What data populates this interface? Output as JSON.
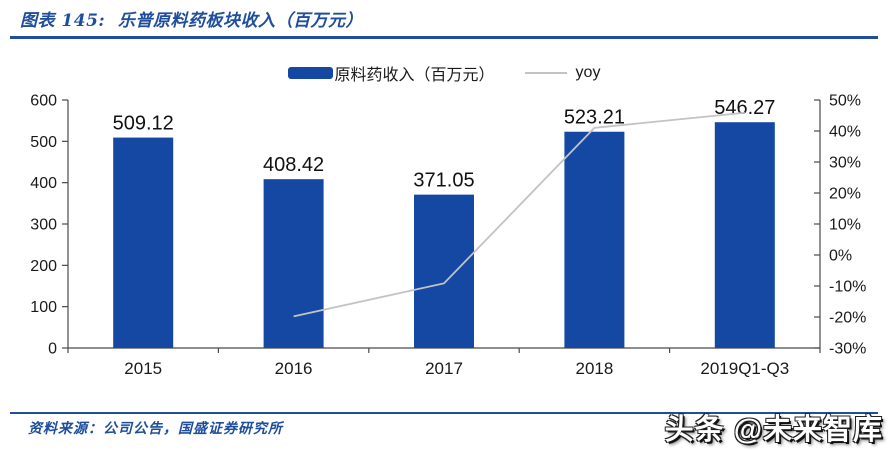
{
  "colors": {
    "accent_blue": "#1F4E9C",
    "bar_blue": "#1548A3",
    "yoy_line_gray": "#C3C3C3",
    "axis_gray": "#4a4a4a",
    "label_dark": "#111111"
  },
  "header": {
    "title": "图表 145:  乐普原料药板块收入（百万元）"
  },
  "legend": {
    "bar_label": "原料药收入（百万元）",
    "line_label": "yoy"
  },
  "chart_data": {
    "type": "bar",
    "title": "乐普原料药板块收入（百万元）",
    "categories": [
      "2015",
      "2016",
      "2017",
      "2018",
      "2019Q1-Q3"
    ],
    "series": [
      {
        "name": "原料药收入（百万元）",
        "type": "bar",
        "axis": "left",
        "values": [
          509.12,
          408.42,
          371.05,
          523.21,
          546.27
        ]
      },
      {
        "name": "yoy",
        "type": "line",
        "axis": "right",
        "values": [
          null,
          -19.78,
          -9.15,
          41.01,
          45.9
        ]
      }
    ],
    "bar_labels": [
      "509.12",
      "408.42",
      "371.05",
      "523.21",
      "546.27"
    ],
    "left_axis": {
      "min": 0,
      "max": 600,
      "step": 100,
      "ticks": [
        "600",
        "500",
        "400",
        "300",
        "200",
        "100",
        "0"
      ]
    },
    "right_axis": {
      "min": -30,
      "max": 50,
      "step": 10,
      "ticks": [
        "50%",
        "40%",
        "30%",
        "20%",
        "10%",
        "0%",
        "-10%",
        "-20%",
        "-30%"
      ]
    },
    "grid": false,
    "legend_position": "top-center"
  },
  "footer": {
    "source": "资料来源：公司公告，国盛证券研究所"
  },
  "watermark": "头条 @未来智库"
}
